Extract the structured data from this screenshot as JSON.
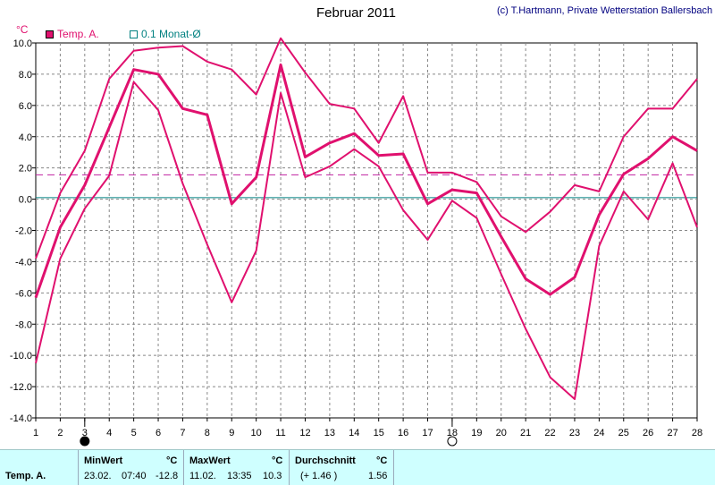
{
  "header": {
    "title": "Februar 2011",
    "credit": "(c) T.Hartmann, Private Wetterstation Ballersbach",
    "unit": "°C"
  },
  "legend": [
    {
      "label": "Temp. A.",
      "color": "#e0106e"
    },
    {
      "label": "0.1 Monat-Ø",
      "color": "#008080"
    }
  ],
  "chart_data": {
    "type": "line",
    "x": [
      1,
      2,
      3,
      4,
      5,
      6,
      7,
      8,
      9,
      10,
      11,
      12,
      13,
      14,
      15,
      16,
      17,
      18,
      19,
      20,
      21,
      22,
      23,
      24,
      25,
      26,
      27,
      28
    ],
    "ylim": [
      -14,
      10
    ],
    "xlim": [
      1,
      28
    ],
    "grid": true,
    "y_ticks": [
      "10.0",
      "8.0",
      "6.0",
      "4.0",
      "2.0",
      "0.0",
      "-2.0",
      "-4.0",
      "-6.0",
      "-8.0",
      "-10.0",
      "-12.0",
      "-14.0"
    ],
    "x_ticks": [
      "1",
      "2",
      "3",
      "4",
      "5",
      "6",
      "7",
      "8",
      "9",
      "10",
      "11",
      "12",
      "13",
      "14",
      "15",
      "16",
      "17",
      "18",
      "19",
      "20",
      "21",
      "22",
      "23",
      "24",
      "25",
      "26",
      "27",
      "28"
    ],
    "series": [
      {
        "role": "max",
        "color": "#e0106e",
        "values": [
          -3.8,
          0.4,
          3.1,
          7.7,
          9.5,
          9.7,
          9.8,
          8.8,
          8.3,
          6.7,
          10.3,
          8.1,
          6.1,
          5.8,
          3.6,
          6.6,
          1.7,
          1.7,
          1.1,
          -1.1,
          -2.1,
          -0.8,
          0.9,
          0.5,
          4.0,
          5.8,
          5.8,
          7.7
        ]
      },
      {
        "role": "mean",
        "color": "#e0106e",
        "values": [
          -6.3,
          -1.8,
          0.9,
          4.6,
          8.3,
          8.0,
          5.8,
          5.4,
          -0.3,
          1.4,
          8.6,
          2.7,
          3.6,
          4.2,
          2.8,
          2.9,
          -0.3,
          0.6,
          0.4,
          -2.4,
          -5.1,
          -6.1,
          -5.0,
          -1.0,
          1.6,
          2.6,
          4.0,
          3.1
        ]
      },
      {
        "role": "min",
        "color": "#e0106e",
        "values": [
          -10.5,
          -3.8,
          -0.6,
          1.5,
          7.5,
          5.7,
          1.0,
          -2.9,
          -6.6,
          -3.3,
          6.8,
          1.4,
          2.1,
          3.2,
          2.1,
          -0.7,
          -2.6,
          -0.1,
          -1.2,
          -4.8,
          -8.3,
          -11.4,
          -12.8,
          -3.0,
          0.5,
          -1.3,
          2.3,
          -1.8
        ]
      }
    ],
    "reference_lines": [
      {
        "value": 1.56,
        "color": "#c020a0",
        "style": "dashed"
      },
      {
        "value": 0.1,
        "color": "#008080",
        "style": "solid"
      }
    ],
    "moon_markers": [
      {
        "x": 3,
        "phase": "new-moon"
      },
      {
        "x": 18,
        "phase": "full-moon"
      }
    ]
  },
  "footer": {
    "row_label": "Temp. A.",
    "min": {
      "header": "MinWert",
      "unit": "°C",
      "date": "23.02.",
      "time": "07:40",
      "value": "-12.8"
    },
    "max": {
      "header": "MaxWert",
      "unit": "°C",
      "date": "11.02.",
      "time": "13:35",
      "value": "10.3"
    },
    "avg": {
      "header": "Durchschnitt",
      "unit": "°C",
      "extra": "(+ 1.46 )",
      "value": "1.56"
    }
  }
}
